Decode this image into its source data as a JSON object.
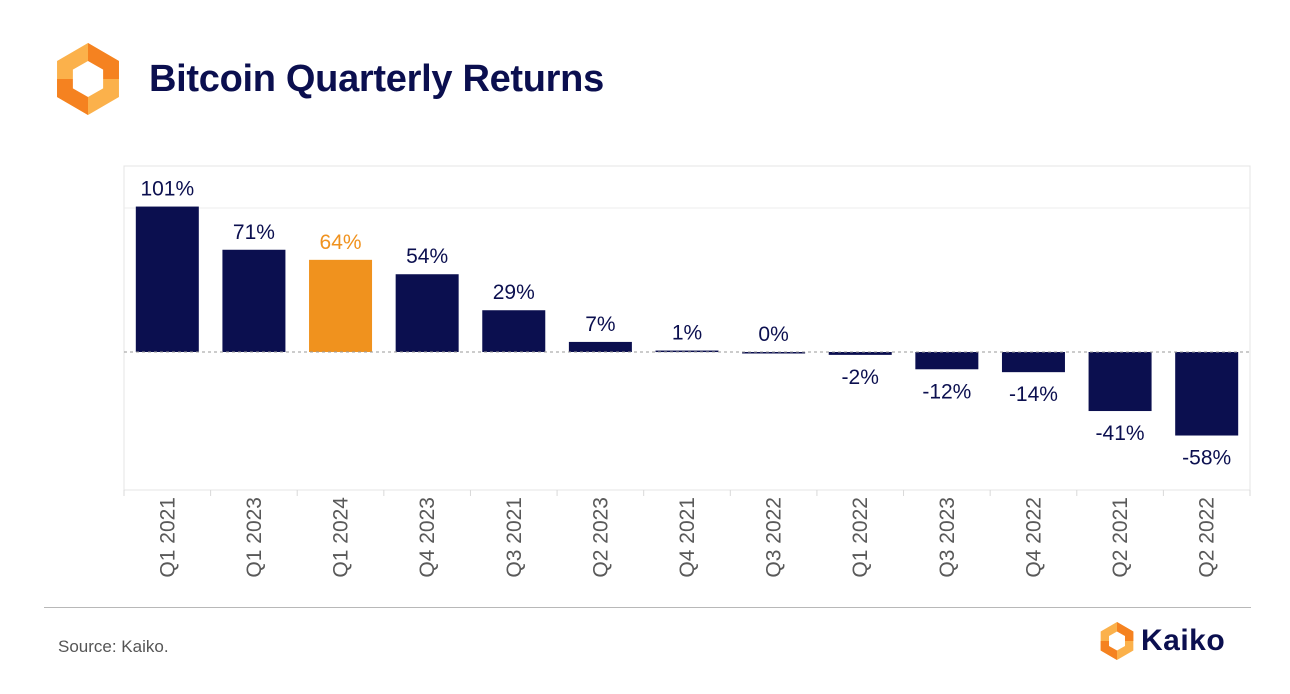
{
  "header": {
    "title": "Bitcoin Quarterly Returns"
  },
  "footer": {
    "source": "Source: Kaiko.",
    "brand": "Kaiko"
  },
  "colors": {
    "navy": "#0b0f4f",
    "accent": "#f0921e",
    "logo_light": "#fbb14b",
    "logo_dark": "#f58220"
  },
  "chart_data": {
    "type": "bar",
    "title": "Bitcoin Quarterly Returns",
    "xlabel": "",
    "ylabel": "",
    "unit": "%",
    "ylim": [
      -95,
      113
    ],
    "categories": [
      "Q1 2021",
      "Q1 2023",
      "Q1 2024",
      "Q4 2023",
      "Q3 2021",
      "Q2 2023",
      "Q4 2021",
      "Q3 2022",
      "Q1 2022",
      "Q3 2023",
      "Q4 2022",
      "Q2 2021",
      "Q2 2022"
    ],
    "values": [
      101,
      71,
      64,
      54,
      29,
      7,
      1,
      0,
      -2,
      -12,
      -14,
      -41,
      -58
    ],
    "labels": [
      "101%",
      "71%",
      "64%",
      "54%",
      "29%",
      "7%",
      "1%",
      "0%",
      "-2%",
      "-12%",
      "-14%",
      "-41%",
      "-58%"
    ],
    "highlight": "Q1 2024",
    "grid": true
  }
}
